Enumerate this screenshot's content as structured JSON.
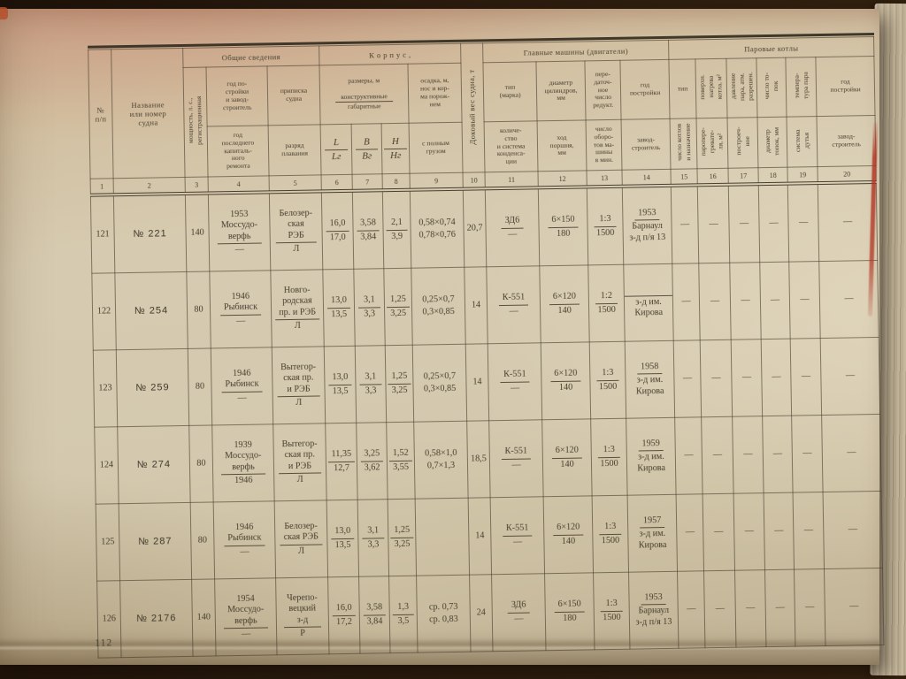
{
  "page": {
    "number": "112"
  },
  "colors": {
    "paper": "#d4c9ae",
    "paper_top_tint": "#c9a88d",
    "ink": "#453e2e",
    "rule": "#46402c",
    "red_mark": "#b23524",
    "backdrop": "#2a1b0e"
  },
  "header": {
    "groups": {
      "general": "Общие сведения",
      "hull": "К о р п у с ,",
      "engines": "Главные машины (двигатели)",
      "boilers": "Паровые котлы"
    },
    "c1": "№|п/п",
    "c2": "Название|или номер|судна",
    "c3": "мощность, л. с.,|регистрационная|строительная",
    "c4t": "год по-|стройки|и завод-|строитель",
    "c4b": "год|последнего|капиталь-|ного|ремонта",
    "c5t": "приписка|судна",
    "c5b": "разряд|плавания",
    "size_title": "размеры, м",
    "size_top": "конструктивные",
    "size_bottom": "габаритные",
    "c6t": "L",
    "c6b": "Lг",
    "c7t": "B",
    "c7b": "Bг",
    "c8t": "H",
    "c8b": "Hг",
    "c9t": "осадка, м,|нос и кор-|ма порож-|нем",
    "c9b": "с полным|грузом",
    "c10": "Доковый вес судна, т",
    "c11t": "тип|(марка)",
    "c11b": "количе-|ство|и система|конденса-|ции",
    "c12t": "диаметр|цилиндров,|мм",
    "c12b": "ход|поршня,|мм",
    "c13t": "пере-|даточ-|ное|число|редукт.",
    "c13b": "число|оборо-|тов ма-|шины|в мин.",
    "c14t": "год|постройки",
    "c14b": "завод-|строитель",
    "c15t": "тип",
    "c15b": "число котлов|и назначение",
    "c16t": "поверхн.|нагрева|котла, м²",
    "c16b": "паропере-|гревате-|ля, м²",
    "c17t": "давление|пара, атм.|разрешен.",
    "c17b": "построеч-|ное",
    "c18t": "число то-|пок",
    "c18b": "диаметр|топок, мм",
    "c19t": "темпера-|тура пара",
    "c19b": "система|дутья",
    "c20t": "год|постройки",
    "c20b": "завод-|строитель",
    "numbers": [
      "1",
      "2",
      "3",
      "4",
      "5",
      "6",
      "7",
      "8",
      "9",
      "10",
      "11",
      "12",
      "13",
      "14",
      "15",
      "16",
      "17",
      "18",
      "19",
      "20"
    ]
  },
  "rows": [
    {
      "n": "121",
      "name": "№ 221",
      "power": "140",
      "c4": {
        "t": "1953|Моссудо-|верфь",
        "b": "—"
      },
      "c5": {
        "t": "Белозер-|ская|РЭБ",
        "b": "Л"
      },
      "c6": {
        "t": "16,0",
        "b": "17,0"
      },
      "c7": {
        "t": "3,58",
        "b": "3,84"
      },
      "c8": {
        "t": "2,1",
        "b": "3,9"
      },
      "c9": {
        "t": "0,58×0,74",
        "b": "0,78×0,76",
        "noline": true
      },
      "c10": "20,7",
      "c11": {
        "t": "ЗД6",
        "b": "—"
      },
      "c12": {
        "t": "6×150",
        "b": "180"
      },
      "c13": {
        "t": "1:3",
        "b": "1500"
      },
      "c14": {
        "t": "1953",
        "b": "Барнаул|з-д п/я 13"
      },
      "c15": "—",
      "c16": "—",
      "c17": "—",
      "c18": "—",
      "c19": "—",
      "c20": "—"
    },
    {
      "n": "122",
      "name": "№ 254",
      "power": "80",
      "c4": {
        "t": "1946|Рыбинск",
        "b": "—"
      },
      "c5": {
        "t": "Новго-|родская|пр. и РЭБ",
        "b": "Л"
      },
      "c6": {
        "t": "13,0",
        "b": "13,5"
      },
      "c7": {
        "t": "3,1",
        "b": "3,3"
      },
      "c8": {
        "t": "1,25",
        "b": "3,25"
      },
      "c9": {
        "t": "0,25×0,7",
        "b": "0,3×0,85",
        "noline": true
      },
      "c10": "14",
      "c11": {
        "t": "К-551",
        "b": "—"
      },
      "c12": {
        "t": "6×120",
        "b": "140"
      },
      "c13": {
        "t": "1:2",
        "b": "1500"
      },
      "c14": {
        "t": "",
        "b": "з-д им.|Кирова"
      },
      "c15": "—",
      "c16": "—",
      "c17": "—",
      "c18": "—",
      "c19": "—",
      "c20": "—"
    },
    {
      "n": "123",
      "name": "№ 259",
      "power": "80",
      "c4": {
        "t": "1946|Рыбинск",
        "b": "—"
      },
      "c5": {
        "t": "Вытегор-|ская пр.|и РЭБ",
        "b": "Л"
      },
      "c6": {
        "t": "13,0",
        "b": "13,5"
      },
      "c7": {
        "t": "3,1",
        "b": "3,3"
      },
      "c8": {
        "t": "1,25",
        "b": "3,25"
      },
      "c9": {
        "t": "0,25×0,7",
        "b": "0,3×0,85",
        "noline": true
      },
      "c10": "14",
      "c11": {
        "t": "К-551",
        "b": "—"
      },
      "c12": {
        "t": "6×120",
        "b": "140"
      },
      "c13": {
        "t": "1:3",
        "b": "1500"
      },
      "c14": {
        "t": "1958",
        "b": "з-д им.|Кирова"
      },
      "c15": "—",
      "c16": "—",
      "c17": "—",
      "c18": "—",
      "c19": "—",
      "c20": "—"
    },
    {
      "n": "124",
      "name": "№ 274",
      "power": "80",
      "c4": {
        "t": "1939|Моссудо-|верфь",
        "b": "1946"
      },
      "c5": {
        "t": "Вытегор-|ская пр.|и РЭБ",
        "b": "Л"
      },
      "c6": {
        "t": "11,35",
        "b": "12,7"
      },
      "c7": {
        "t": "3,25",
        "b": "3,62"
      },
      "c8": {
        "t": "1,52",
        "b": "3,55"
      },
      "c9": {
        "t": "0,58×1,0",
        "b": "0,7×1,3",
        "noline": true
      },
      "c10": "18,5",
      "c11": {
        "t": "К-551",
        "b": "—"
      },
      "c12": {
        "t": "6×120",
        "b": "140"
      },
      "c13": {
        "t": "1:3",
        "b": "1500"
      },
      "c14": {
        "t": "1959",
        "b": "з-д им.|Кирова"
      },
      "c15": "—",
      "c16": "—",
      "c17": "—",
      "c18": "—",
      "c19": "—",
      "c20": "—"
    },
    {
      "n": "125",
      "name": "№ 287",
      "power": "80",
      "c4": {
        "t": "1946|Рыбинск",
        "b": "—"
      },
      "c5": {
        "t": "Белозер-|ская РЭБ",
        "b": "Л"
      },
      "c6": {
        "t": "13,0",
        "b": "13,5"
      },
      "c7": {
        "t": "3,1",
        "b": "3,3"
      },
      "c8": {
        "t": "1,25",
        "b": "3,25"
      },
      "c9": "",
      "c10": "14",
      "c11": {
        "t": "К-551",
        "b": "—"
      },
      "c12": {
        "t": "6×120",
        "b": "140"
      },
      "c13": {
        "t": "1:3",
        "b": "1500"
      },
      "c14": {
        "t": "1957",
        "b": "з-д им.|Кирова"
      },
      "c15": "—",
      "c16": "—",
      "c17": "—",
      "c18": "—",
      "c19": "—",
      "c20": "—"
    },
    {
      "n": "126",
      "name": "№ 2176",
      "power": "140",
      "c4": {
        "t": "1954|Моссудо-|верфь",
        "b": "—"
      },
      "c5": {
        "t": "Черепо-|вецкий|з-д",
        "b": "Р"
      },
      "c6": {
        "t": "16,0",
        "b": "17,2"
      },
      "c7": {
        "t": "3,58",
        "b": "3,84"
      },
      "c8": {
        "t": "1,3",
        "b": "3,5"
      },
      "c9": {
        "t": "ср. 0,73",
        "b": "ср. 0,83",
        "noline": true
      },
      "c10": "24",
      "c11": {
        "t": "ЗД6",
        "b": "—"
      },
      "c12": {
        "t": "6×150",
        "b": "180"
      },
      "c13": {
        "t": "1:3",
        "b": "1500"
      },
      "c14": {
        "t": "1953",
        "b": "Барнаул|з-д п/я 13"
      },
      "c15": "—",
      "c16": "—",
      "c17": "—",
      "c18": "—",
      "c19": "—",
      "c20": "—"
    }
  ]
}
